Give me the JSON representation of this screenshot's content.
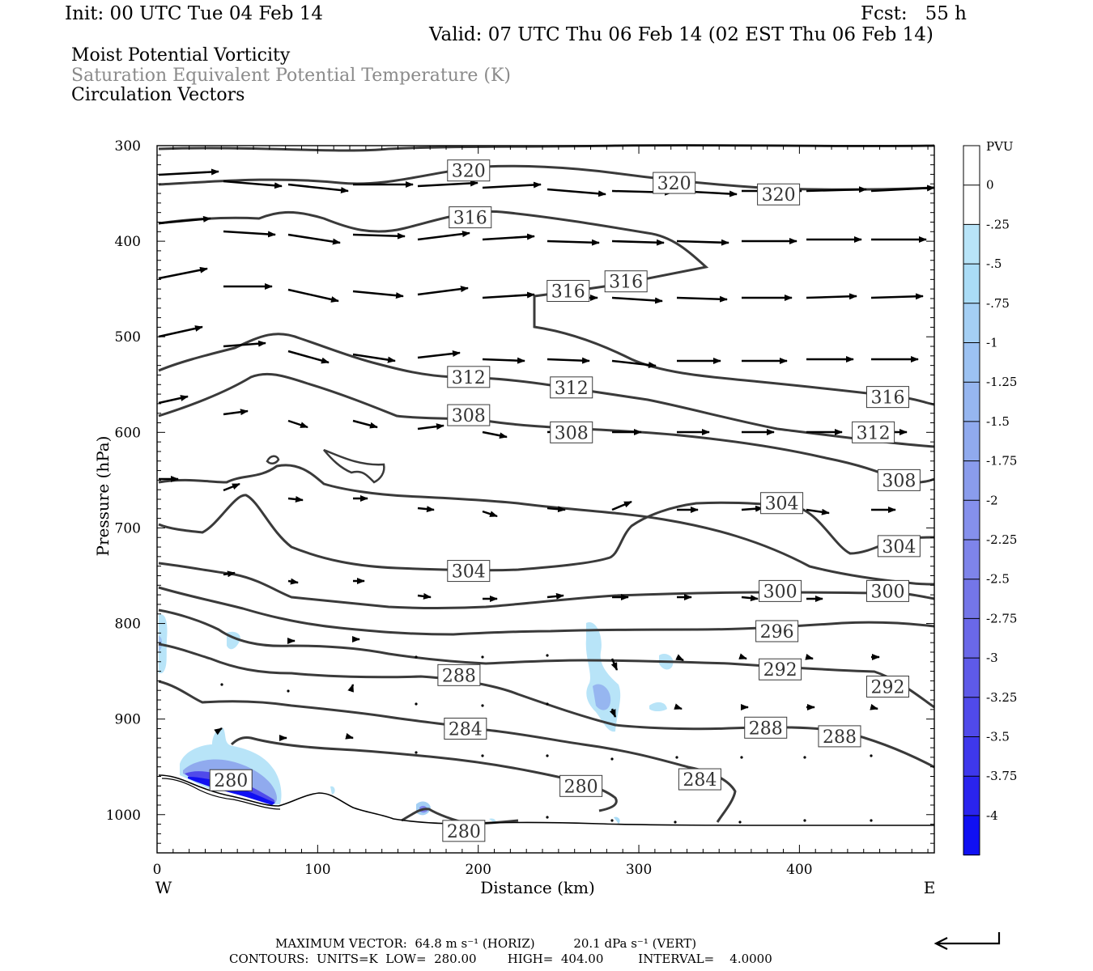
{
  "header": {
    "init": "Init: 00 UTC Tue 04 Feb 14",
    "fcst": "Fcst:   55 h",
    "valid": "Valid: 07 UTC Thu 06 Feb 14 (02 EST Thu 06 Feb 14)"
  },
  "titles": {
    "line1": "Moist Potential Vorticity",
    "line2": "Saturation Equivalent Potential Temperature (K)",
    "line3": "Circulation Vectors"
  },
  "colors": {
    "contour": "#3a3a3a",
    "vector": "#000000",
    "title_gray": "#8a8a8a"
  },
  "chart_data": {
    "type": "cross-section",
    "xlabel": "Distance (km)",
    "ylabel": "Pressure (hPa)",
    "x_ticks": [
      0,
      100,
      200,
      300,
      400
    ],
    "y_ticks": [
      300,
      400,
      500,
      600,
      700,
      800,
      900,
      1000
    ],
    "xlim": [
      0,
      484
    ],
    "ylim": [
      300,
      1040
    ],
    "x_end_labels": {
      "left": "W",
      "right": "E"
    },
    "colorbar": {
      "units": "PVU",
      "labels": [
        "0",
        "-.25",
        "-.5",
        "-.75",
        "-1",
        "-1.25",
        "-1.5",
        "-1.75",
        "-2",
        "-2.25",
        "-2.5",
        "-2.75",
        "-3",
        "-3.25",
        "-3.5",
        "-3.75",
        "-4"
      ],
      "colors": [
        "#ffffff",
        "#ffffff",
        "#b8e4f8",
        "#aadcf6",
        "#a4cff4",
        "#9cc2f2",
        "#96b6f0",
        "#90aaee",
        "#8a9cec",
        "#8590ec",
        "#7e84ea",
        "#7476e8",
        "#6a68e8",
        "#5e5ae8",
        "#504aea",
        "#3e38ec",
        "#2a24ee",
        "#1010f2"
      ]
    },
    "contour_labels": [
      {
        "text": "320",
        "x": 194,
        "p": 326
      },
      {
        "text": "320",
        "x": 322,
        "p": 339
      },
      {
        "text": "320",
        "x": 387,
        "p": 351
      },
      {
        "text": "316",
        "x": 195,
        "p": 375
      },
      {
        "text": "316",
        "x": 256,
        "p": 452
      },
      {
        "text": "316",
        "x": 292,
        "p": 442
      },
      {
        "text": "312",
        "x": 194,
        "p": 542
      },
      {
        "text": "312",
        "x": 258,
        "p": 553
      },
      {
        "text": "316",
        "x": 455,
        "p": 563
      },
      {
        "text": "308",
        "x": 194,
        "p": 582
      },
      {
        "text": "308",
        "x": 258,
        "p": 600
      },
      {
        "text": "312",
        "x": 446,
        "p": 600
      },
      {
        "text": "308",
        "x": 462,
        "p": 650
      },
      {
        "text": "304",
        "x": 389,
        "p": 674
      },
      {
        "text": "304",
        "x": 194,
        "p": 745
      },
      {
        "text": "304",
        "x": 462,
        "p": 719
      },
      {
        "text": "300",
        "x": 388,
        "p": 766
      },
      {
        "text": "300",
        "x": 455,
        "p": 766
      },
      {
        "text": "296",
        "x": 386,
        "p": 808
      },
      {
        "text": "292",
        "x": 388,
        "p": 848
      },
      {
        "text": "292",
        "x": 455,
        "p": 866
      },
      {
        "text": "288",
        "x": 188,
        "p": 854
      },
      {
        "text": "284",
        "x": 192,
        "p": 910
      },
      {
        "text": "288",
        "x": 379,
        "p": 909
      },
      {
        "text": "288",
        "x": 425,
        "p": 918
      },
      {
        "text": "280",
        "x": 46,
        "p": 964
      },
      {
        "text": "280",
        "x": 264,
        "p": 970
      },
      {
        "text": "284",
        "x": 338,
        "p": 963
      },
      {
        "text": "280",
        "x": 191,
        "p": 1017
      }
    ]
  },
  "footer": {
    "line1": "MAXIMUM VECTOR:  64.8 m s⁻¹ (HORIZ)          20.1 dPa s⁻¹ (VERT)",
    "line2": "CONTOURS:  UNITS=K  LOW=  280.00        HIGH=  404.00         INTERVAL=    4.0000"
  }
}
